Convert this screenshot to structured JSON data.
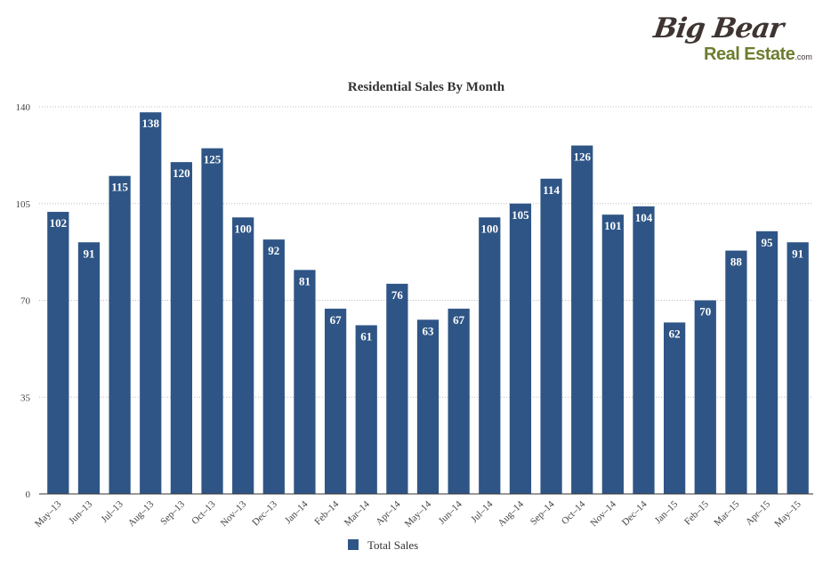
{
  "logo": {
    "line1": "Big Bear",
    "line2": "Real Estate",
    "suffix": ".com"
  },
  "colors": {
    "bar": "#2f5586",
    "grid": "#bbbbbb",
    "axis": "#333333"
  },
  "chart_data": {
    "type": "bar",
    "title": "Residential Sales By Month",
    "xlabel": "",
    "ylabel": "",
    "ylim": [
      0,
      140
    ],
    "yticks": [
      0,
      35,
      70,
      105,
      140
    ],
    "grid": true,
    "legend_position": "bottom",
    "categories": [
      "May–13",
      "Jun–13",
      "Jul–13",
      "Aug–13",
      "Sep–13",
      "Oct–13",
      "Nov–13",
      "Dec–13",
      "Jan–14",
      "Feb–14",
      "Mar–14",
      "Apr–14",
      "May–14",
      "Jun–14",
      "Jul–14",
      "Aug–14",
      "Sep–14",
      "Oct–14",
      "Nov–14",
      "Dec–14",
      "Jan–15",
      "Feb–15",
      "Mar–15",
      "Apr–15",
      "May–15"
    ],
    "series": [
      {
        "name": "Total Sales",
        "values": [
          102,
          91,
          115,
          138,
          120,
          125,
          100,
          92,
          81,
          67,
          61,
          76,
          63,
          67,
          100,
          105,
          114,
          126,
          101,
          104,
          62,
          70,
          88,
          95,
          91
        ]
      }
    ]
  }
}
